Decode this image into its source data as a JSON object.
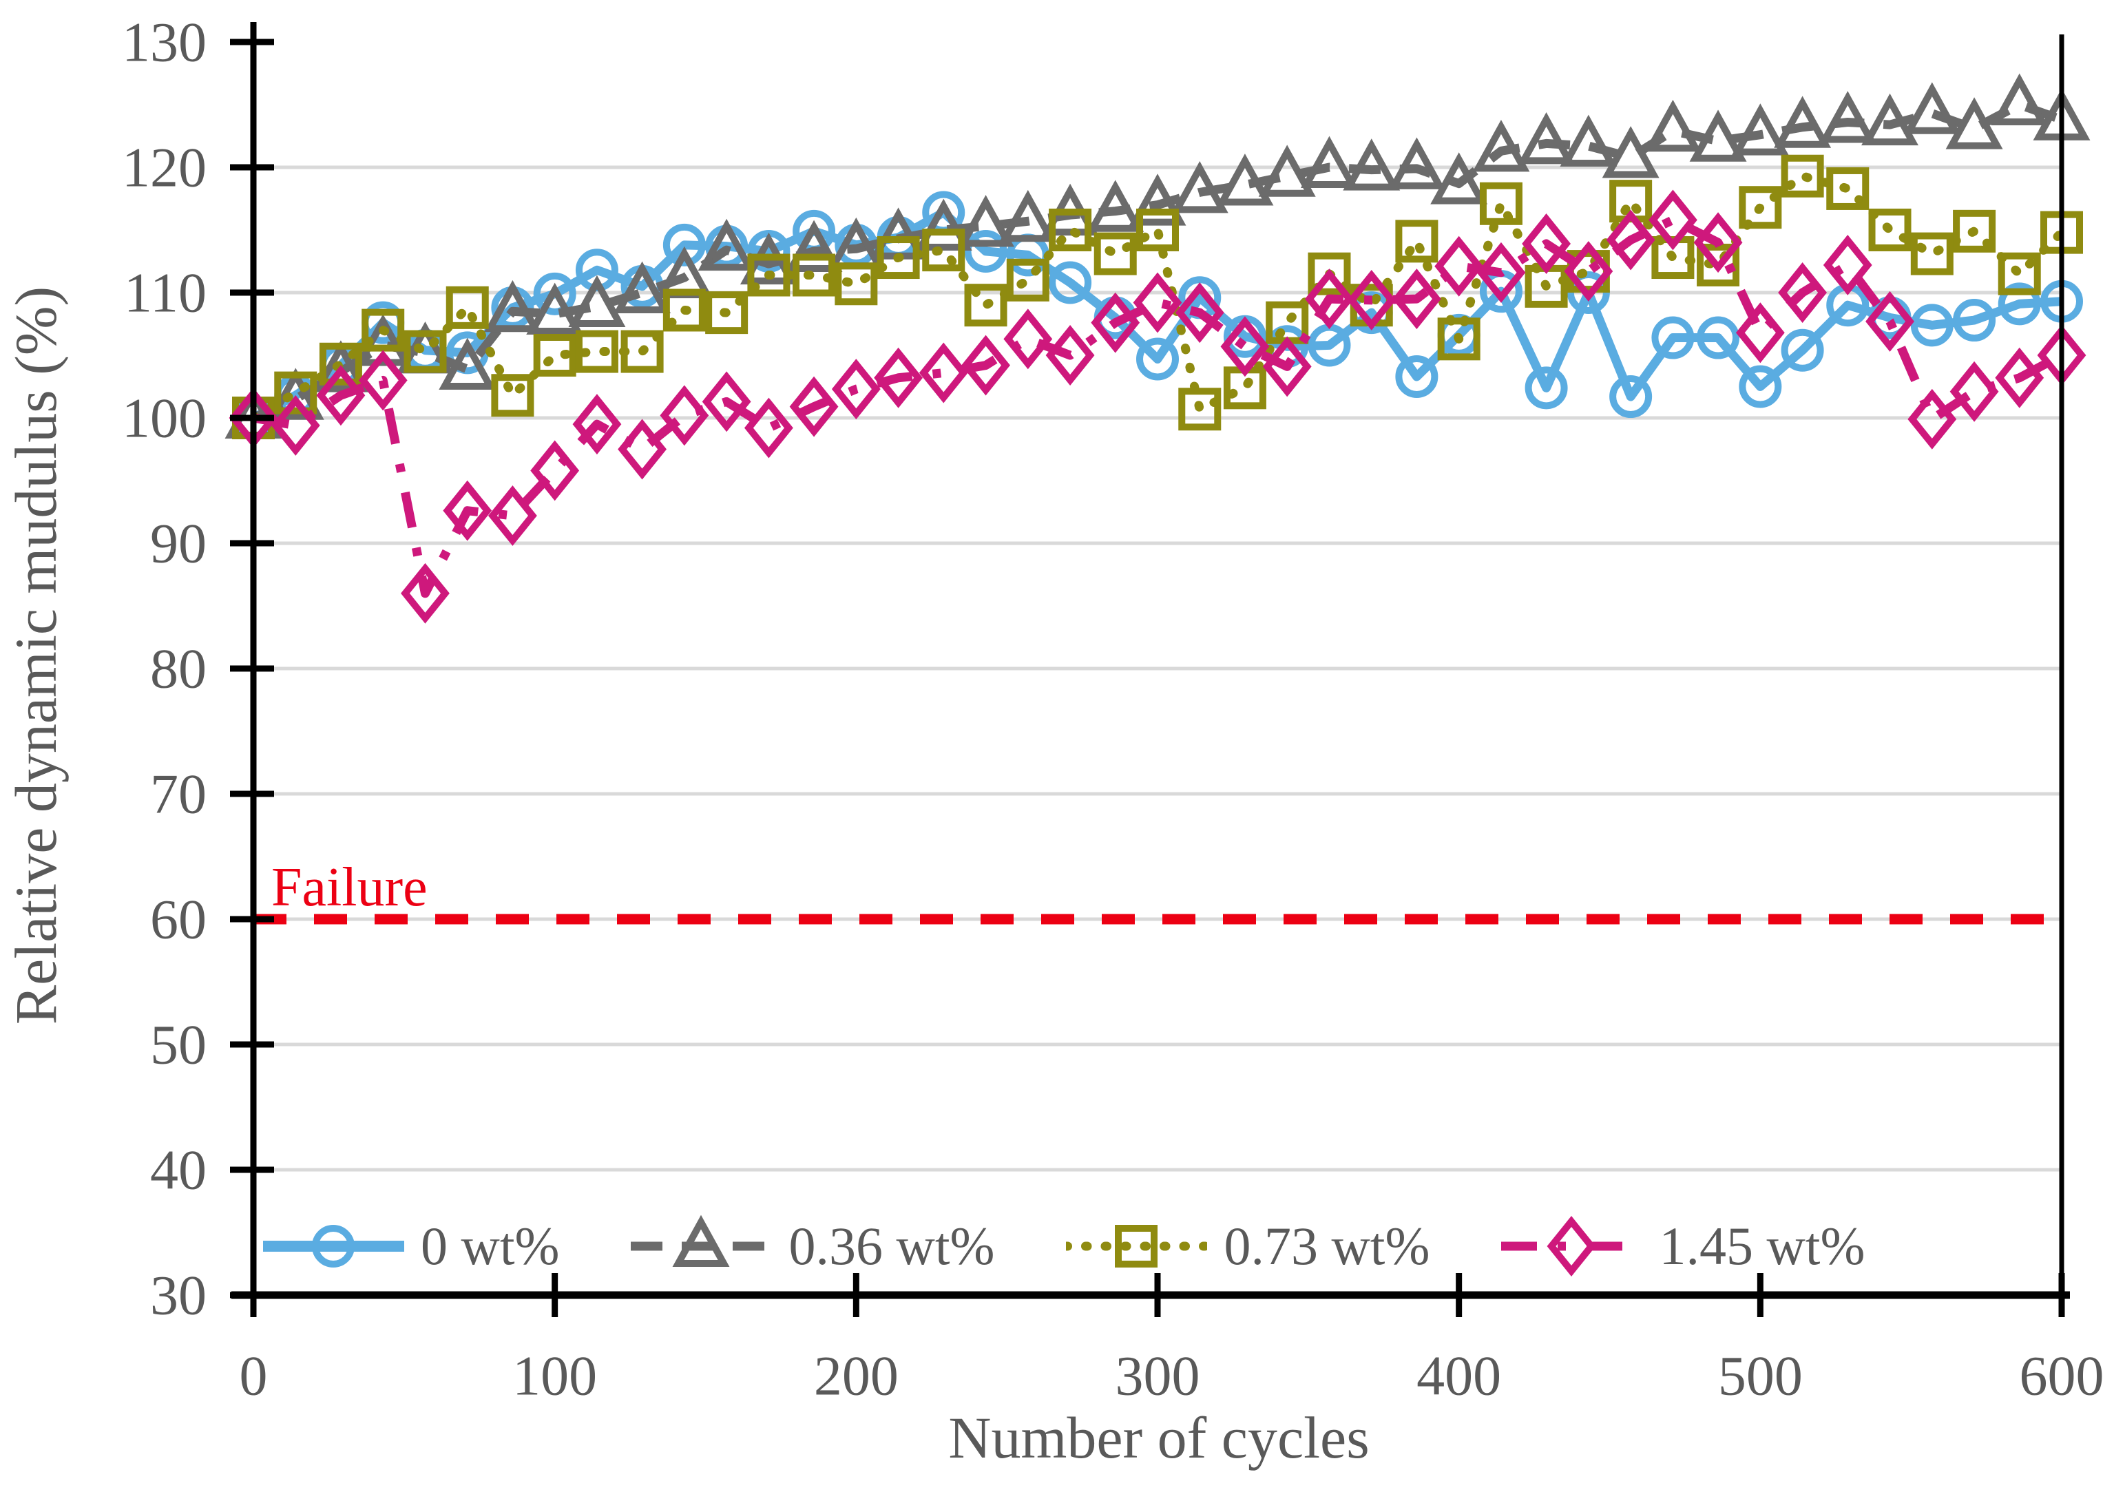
{
  "chart_data": {
    "type": "line",
    "title": "",
    "xlabel": "Number of cycles",
    "ylabel": "Relative dynamic mudulus (%)",
    "xlim": [
      0,
      600
    ],
    "ylim": [
      30,
      130
    ],
    "x_ticks": [
      0,
      100,
      200,
      300,
      400,
      500,
      600
    ],
    "y_ticks": [
      30,
      40,
      50,
      60,
      70,
      80,
      90,
      100,
      110,
      120,
      130
    ],
    "grid": "horizontal",
    "grid_color": "#D9D9D9",
    "axis_color": "#000000",
    "text_color": "#595959",
    "legend_position": "bottom-inside",
    "failure_line": {
      "label": "Failure",
      "value": 60,
      "color": "#EC0013",
      "style": "dashed"
    },
    "x": [
      0,
      14,
      29,
      43,
      57,
      71,
      86,
      100,
      114,
      129,
      143,
      157,
      171,
      186,
      200,
      214,
      229,
      243,
      257,
      271,
      286,
      300,
      314,
      329,
      343,
      357,
      371,
      386,
      400,
      414,
      429,
      443,
      457,
      471,
      486,
      500,
      514,
      529,
      543,
      557,
      571,
      586,
      600
    ],
    "series": [
      {
        "name": "0 wt%",
        "color": "#5AACE1",
        "marker": "circle",
        "line_style": "solid",
        "values": [
          100,
          101.8,
          104.2,
          107.6,
          105.4,
          105.2,
          108.8,
          109.9,
          111.8,
          110.5,
          113.8,
          113.7,
          113.3,
          114.9,
          113.8,
          114.4,
          116.4,
          113.3,
          113.0,
          110.8,
          108.0,
          104.7,
          109.6,
          106.5,
          105.7,
          105.8,
          108.4,
          103.3,
          106.6,
          110.1,
          102.4,
          110.0,
          101.7,
          106.4,
          106.4,
          102.5,
          105.4,
          109.0,
          108.0,
          107.4,
          107.8,
          109.1,
          109.3
        ]
      },
      {
        "name": "0.36 wt%",
        "color": "#6B6B6B",
        "marker": "triangle",
        "line_style": "dashed",
        "values": [
          100,
          101.5,
          103.7,
          105.8,
          105.2,
          103.9,
          108.5,
          108.3,
          108.9,
          110.0,
          111.2,
          113.4,
          112.3,
          113.3,
          113.5,
          114.3,
          115.0,
          115.3,
          115.7,
          116.2,
          116.5,
          117.0,
          118.0,
          118.6,
          119.3,
          120.0,
          119.8,
          119.9,
          118.7,
          121.3,
          121.9,
          121.7,
          120.8,
          122.9,
          122.1,
          122.6,
          123.2,
          123.6,
          123.4,
          124.3,
          123.1,
          125.0,
          123.8
        ]
      },
      {
        "name": "0.73 wt%",
        "color": "#8F8B10",
        "marker": "square",
        "line_style": "dotted",
        "values": [
          100,
          102.0,
          104.3,
          107.0,
          105.3,
          108.8,
          101.8,
          105.0,
          105.3,
          105.3,
          108.6,
          108.4,
          111.4,
          111.4,
          110.7,
          112.8,
          113.4,
          109.0,
          111.0,
          115.0,
          113.1,
          115.0,
          100.7,
          102.4,
          107.6,
          111.5,
          109.0,
          114.1,
          106.3,
          117.1,
          110.5,
          111.7,
          117.3,
          112.8,
          112.2,
          116.8,
          119.3,
          118.3,
          115.0,
          113.1,
          114.9,
          111.5,
          114.8
        ]
      },
      {
        "name": "1.45 wt%",
        "color": "#CE187C",
        "marker": "diamond",
        "line_style": "dash-dot",
        "values": [
          100,
          99.4,
          101.8,
          103.0,
          86.0,
          92.6,
          92.2,
          95.8,
          99.5,
          97.5,
          100.2,
          101.3,
          99.2,
          100.9,
          102.3,
          103.2,
          103.6,
          104.2,
          106.3,
          105.0,
          107.6,
          109.2,
          108.4,
          105.7,
          104.1,
          109.5,
          109.4,
          109.5,
          112.1,
          111.6,
          113.9,
          111.7,
          114.2,
          115.8,
          114.0,
          106.8,
          110.0,
          112.2,
          107.7,
          99.9,
          102.1,
          103.2,
          105.0
        ]
      }
    ]
  }
}
